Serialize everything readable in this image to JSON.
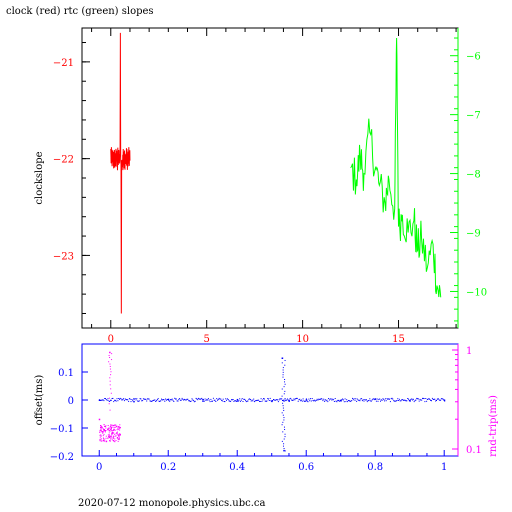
{
  "title": "clock (red) rtc (green) slopes",
  "footer": "2020-07-12 monopole.physics.ubc.ca",
  "colors": {
    "red": "#ff0000",
    "green": "#00ff00",
    "blue": "#0000ff",
    "magenta": "#ff00ff",
    "black": "#000000"
  },
  "chart_data": [
    {
      "type": "line",
      "title": "clock (red) rtc (green) slopes",
      "ylabel": "clockslope",
      "xlim": [
        -1.5,
        18.1
      ],
      "ylim": [
        -23.75,
        -20.65
      ],
      "xticks": [
        0,
        5,
        10,
        15
      ],
      "yticks_left": [
        -21,
        -22,
        -23
      ],
      "yticks_right": [
        -6,
        -7,
        -8,
        -9,
        -10
      ],
      "right_axis_range": [
        -10.62,
        -5.53
      ],
      "grid": false,
      "series": [
        {
          "color": "#ff0000",
          "axis": "left",
          "x": [
            0.0,
            0.05,
            0.1,
            0.15,
            0.2,
            0.25,
            0.3,
            0.35,
            0.4,
            0.45,
            0.5,
            0.55,
            0.6,
            0.65,
            0.7,
            0.75,
            0.8,
            0.85,
            0.9,
            0.95,
            1.0
          ],
          "y": [
            -21.9,
            -22.05,
            -21.95,
            -22.1,
            -21.98,
            -22.08,
            -21.92,
            -22.12,
            -21.97,
            -22.05,
            -20.7,
            -23.6,
            -22.02,
            -21.9,
            -22.1,
            -21.95,
            -22.05,
            -21.93,
            -22.08,
            -21.98,
            -22.02
          ]
        },
        {
          "color": "#00ff00",
          "axis": "right",
          "x": [
            12.5,
            12.8,
            13.0,
            13.2,
            13.5,
            13.8,
            14.0,
            14.3,
            14.5,
            14.8,
            14.9,
            15.0,
            15.2,
            15.5,
            15.8,
            16.0,
            16.2,
            16.5,
            16.8,
            17.0,
            17.2
          ],
          "y": [
            -7.9,
            -8.1,
            -7.7,
            -8.0,
            -7.3,
            -7.9,
            -8.2,
            -8.5,
            -8.1,
            -8.6,
            -5.7,
            -8.9,
            -8.7,
            -9.0,
            -8.8,
            -9.3,
            -9.1,
            -9.6,
            -9.2,
            -9.9,
            -10.1
          ]
        }
      ]
    },
    {
      "type": "scatter",
      "ylabel": "offset(ms)",
      "y2label": "rnd-trip(ms)",
      "xlim": [
        -0.05,
        1.04
      ],
      "ylim": [
        -0.2,
        0.2
      ],
      "xticks": [
        "0",
        "0.2",
        "0.4",
        "0.6",
        "0.8",
        "1"
      ],
      "yticks_left": [
        "0.1",
        "0",
        "-0.1",
        "-0.2"
      ],
      "yticks_right": [
        "1",
        "0.1"
      ],
      "right_scale": "log",
      "right_axis_range": [
        0.085,
        1.15
      ],
      "grid": false,
      "series": [
        {
          "color": "#0000ff",
          "axis": "left",
          "x": [
            0.0,
            0.1,
            0.2,
            0.3,
            0.4,
            0.5,
            0.53,
            0.535,
            0.55,
            0.6,
            0.7,
            0.8,
            0.9,
            1.0
          ],
          "y": [
            0.0,
            -0.005,
            0.003,
            -0.003,
            0.002,
            -0.004,
            0.15,
            -0.18,
            -0.003,
            0.001,
            -0.002,
            0.004,
            -0.001,
            0.0
          ]
        },
        {
          "color": "#ff00ff",
          "axis": "right",
          "x": [
            0.0,
            0.01,
            0.02,
            0.03,
            0.04,
            0.05,
            0.06
          ],
          "y": [
            0.2,
            0.15,
            0.12,
            0.95,
            0.13,
            0.17,
            0.14
          ]
        }
      ]
    }
  ]
}
